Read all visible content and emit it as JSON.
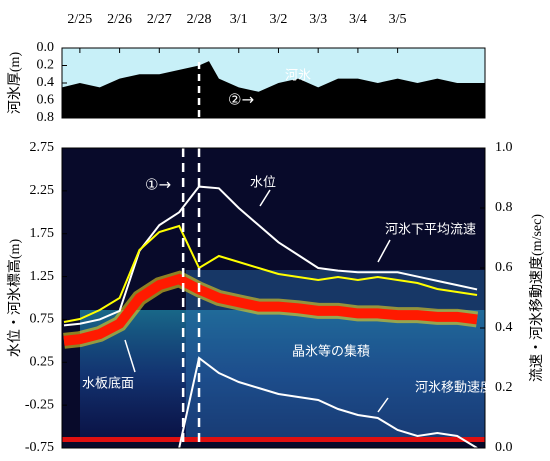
{
  "chart_data": [
    {
      "type": "area",
      "y_label": "河氷厚(m)",
      "y_inverted": true,
      "color": "#000000",
      "background": "#c8f0f8",
      "xlim": [
        -0.45,
        10.2
      ],
      "xticks": [
        {
          "value": 0,
          "label": "2/25"
        },
        {
          "value": 1,
          "label": "2/26"
        },
        {
          "value": 2,
          "label": "2/27"
        },
        {
          "value": 3,
          "label": "2/28"
        },
        {
          "value": 4,
          "label": "3/1"
        },
        {
          "value": 5,
          "label": "3/2"
        },
        {
          "value": 6,
          "label": "3/3"
        },
        {
          "value": 7,
          "label": "3/4"
        },
        {
          "value": 8,
          "label": "3/5"
        }
      ],
      "ylim": [
        0,
        0.8
      ],
      "yticks": [
        {
          "value": 0,
          "label": "0.0"
        },
        0.2,
        0.4,
        0.6,
        0.8
      ],
      "x": [
        -0.45,
        0,
        0.5,
        1,
        1.5,
        2,
        2.5,
        3,
        3.25,
        3.5,
        4,
        4.5,
        5,
        5.5,
        6,
        6.5,
        7,
        7.5,
        8,
        8.5,
        9,
        9.5,
        10.2
      ],
      "values": [
        0.45,
        0.4,
        0.45,
        0.35,
        0.3,
        0.3,
        0.25,
        0.2,
        0.15,
        0.35,
        0.45,
        0.5,
        0.4,
        0.35,
        0.45,
        0.35,
        0.35,
        0.4,
        0.35,
        0.4,
        0.35,
        0.4,
        0.4
      ],
      "markers": [
        3.0
      ],
      "annotations": [
        "河氷",
        "②→"
      ]
    },
    {
      "type": "line",
      "y_label": "水位・河氷標高(m)",
      "y2_label": "流速・河氷移動速度(m/sec)",
      "xlim": [
        -0.45,
        10.2
      ],
      "ylim": [
        -0.75,
        2.75
      ],
      "yticks": [
        -0.75,
        -0.25,
        0.25,
        0.75,
        1.25,
        1.75,
        2.25,
        2.75
      ],
      "y2lim": [
        0,
        1
      ],
      "y2ticks": [
        {
          "value": 0,
          "label": "0.0"
        },
        0.2,
        0.4,
        0.6,
        0.8,
        {
          "value": 1,
          "label": "1.0"
        }
      ],
      "markers": [
        2.6,
        3.0
      ],
      "x": [
        -0.4,
        0,
        0.5,
        1,
        1.5,
        2,
        2.5,
        3,
        3.5,
        4,
        4.5,
        5,
        5.5,
        6,
        6.5,
        7,
        7.5,
        8,
        8.5,
        9,
        9.5,
        10
      ],
      "series": [
        {
          "name": "水板底面",
          "color": "#ff1a00",
          "values": [
            0.5,
            0.52,
            0.58,
            0.7,
            1.0,
            1.15,
            1.22,
            1.1,
            1.0,
            0.95,
            0.9,
            0.9,
            0.88,
            0.85,
            0.85,
            0.82,
            0.82,
            0.8,
            0.8,
            0.78,
            0.78,
            0.75
          ]
        },
        {
          "name": "水位",
          "color": "#ffffff",
          "values": [
            0.68,
            0.7,
            0.75,
            0.85,
            1.55,
            1.85,
            2.0,
            2.3,
            2.28,
            2.05,
            1.85,
            1.65,
            1.5,
            1.35,
            1.32,
            1.3,
            1.3,
            1.3,
            1.25,
            1.2,
            1.15,
            1.1
          ]
        },
        {
          "name": "河氷下平均流速",
          "color": "#ffff00",
          "axis": "y2",
          "values": [
            0.42,
            0.43,
            0.46,
            0.5,
            0.66,
            0.72,
            0.74,
            0.6,
            0.64,
            0.62,
            0.6,
            0.58,
            0.57,
            0.56,
            0.57,
            0.56,
            0.57,
            0.56,
            0.55,
            0.53,
            0.52,
            0.51
          ]
        },
        {
          "name": "河氷移動速度",
          "color": "#ffffff",
          "axis": "y2",
          "values": [
            null,
            null,
            null,
            null,
            null,
            null,
            0.0,
            0.3,
            0.25,
            0.22,
            0.2,
            0.18,
            0.17,
            0.16,
            0.13,
            0.11,
            0.1,
            0.06,
            0.04,
            0.05,
            0.04,
            0.0
          ]
        }
      ],
      "annotations": [
        "①→",
        "晶氷等の集積"
      ]
    }
  ]
}
